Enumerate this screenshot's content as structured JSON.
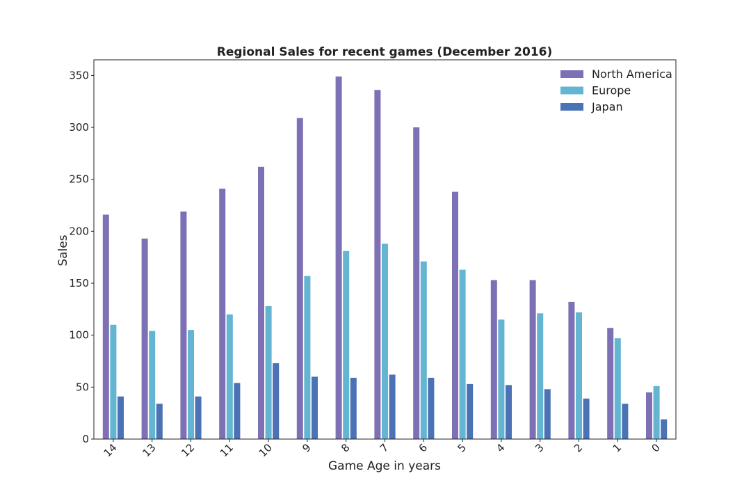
{
  "chart_data": {
    "type": "bar",
    "title": "Regional Sales for recent games (December 2016)",
    "xlabel": "Game Age in years",
    "ylabel": "Sales",
    "categories": [
      "14",
      "13",
      "12",
      "11",
      "10",
      "9",
      "8",
      "7",
      "6",
      "5",
      "4",
      "3",
      "2",
      "1",
      "0"
    ],
    "ylim": [
      0,
      365
    ],
    "yticks": [
      "0",
      "50",
      "100",
      "150",
      "200",
      "250",
      "300",
      "350"
    ],
    "grid": false,
    "legend_position": "top-right",
    "series": [
      {
        "name": "North America",
        "color": "#7e70b4",
        "values": [
          216,
          193,
          219,
          241,
          262,
          309,
          349,
          336,
          300,
          238,
          153,
          153,
          132,
          107,
          45
        ]
      },
      {
        "name": "Europe",
        "color": "#63b5d1",
        "values": [
          110,
          104,
          105,
          120,
          128,
          157,
          181,
          188,
          171,
          163,
          115,
          121,
          122,
          97,
          51
        ]
      },
      {
        "name": "Japan",
        "color": "#4a72b4",
        "values": [
          41,
          34,
          41,
          54,
          73,
          60,
          59,
          62,
          59,
          53,
          52,
          48,
          39,
          34,
          19
        ]
      }
    ]
  }
}
